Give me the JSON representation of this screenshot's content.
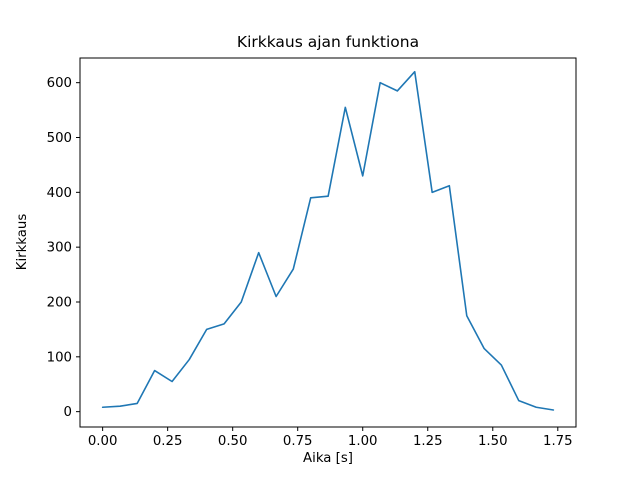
{
  "chart_data": {
    "type": "line",
    "title": "Kirkkaus ajan funktiona",
    "xlabel": "Aika [s]",
    "ylabel": "Kirkkaus",
    "x": [
      0.0,
      0.067,
      0.133,
      0.2,
      0.267,
      0.333,
      0.4,
      0.467,
      0.533,
      0.6,
      0.667,
      0.733,
      0.8,
      0.867,
      0.933,
      1.0,
      1.067,
      1.133,
      1.2,
      1.267,
      1.333,
      1.4,
      1.467,
      1.533,
      1.6,
      1.667,
      1.733
    ],
    "y": [
      8,
      10,
      15,
      75,
      55,
      95,
      150,
      160,
      200,
      290,
      210,
      260,
      390,
      393,
      555,
      430,
      600,
      585,
      620,
      400,
      412,
      175,
      115,
      85,
      20,
      8,
      3
    ],
    "xlim": [
      -0.087,
      1.82
    ],
    "ylim": [
      -28,
      645
    ],
    "xtick_values": [
      0.0,
      0.25,
      0.5,
      0.75,
      1.0,
      1.25,
      1.5,
      1.75
    ],
    "xtick_labels": [
      "0.00",
      "0.25",
      "0.50",
      "0.75",
      "1.00",
      "1.25",
      "1.50",
      "1.75"
    ],
    "ytick_values": [
      0,
      100,
      200,
      300,
      400,
      500,
      600
    ],
    "ytick_labels": [
      "0",
      "100",
      "200",
      "300",
      "400",
      "500",
      "600"
    ],
    "line_color": "#1f77b4",
    "axis_color": "#000000",
    "grid": false,
    "legend_position": "none"
  }
}
